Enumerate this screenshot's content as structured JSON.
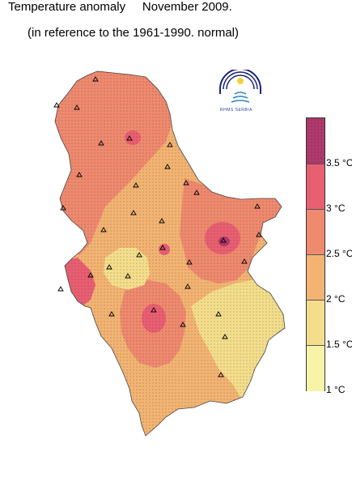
{
  "header": {
    "title": "Temperature anomaly     November 2009.",
    "subtitle": "(in reference to the 1961-1990. normal)"
  },
  "legend": {
    "unit": "°C",
    "bands": [
      {
        "range": "3.5+",
        "color": "#b03a6b"
      },
      {
        "range": "3-3.5",
        "color": "#e95f72"
      },
      {
        "range": "2.5-3",
        "color": "#ef8a6f"
      },
      {
        "range": "2-2.5",
        "color": "#f3b473"
      },
      {
        "range": "1.5-2",
        "color": "#f4de8c"
      },
      {
        "range": "1-1.5",
        "color": "#f7f3a8"
      }
    ],
    "labels": [
      {
        "value": "3.5",
        "unit": "°C"
      },
      {
        "value": "3",
        "unit": "°C"
      },
      {
        "value": "2.5",
        "unit": "°C"
      },
      {
        "value": "2",
        "unit": "°C"
      },
      {
        "value": "1.5",
        "unit": "°C"
      },
      {
        "value": "1",
        "unit": "°C"
      }
    ]
  },
  "logo": {
    "text": "RHMS SERBIA"
  },
  "map": {
    "zones": [
      {
        "name": "base-2-2.5",
        "value_range": "2-2.5",
        "color": "#f3b473"
      },
      {
        "name": "north-west-2.5-3",
        "value_range": "2.5-3",
        "color": "#ef8a6f"
      },
      {
        "name": "east-2.5-3",
        "value_range": "2.5-3",
        "color": "#ef8a6f"
      },
      {
        "name": "central-south-2.5-3",
        "value_range": "2.5-3",
        "color": "#ef8a6f"
      },
      {
        "name": "west-1.5-2",
        "value_range": "1.5-2",
        "color": "#f4de8c"
      },
      {
        "name": "south-east-1.5-2",
        "value_range": "1.5-2",
        "color": "#f4de8c"
      },
      {
        "name": "north-3-3.5",
        "value_range": "3-3.5",
        "color": "#e95f72"
      },
      {
        "name": "east-3-3.5",
        "value_range": "3-3.5",
        "color": "#e95f72"
      },
      {
        "name": "east-core-3.5+",
        "value_range": "3.5+",
        "color": "#b03a6b"
      },
      {
        "name": "south-west-3-3.5",
        "value_range": "3-3.5",
        "color": "#e95f72"
      },
      {
        "name": "center-3-3.5",
        "value_range": "3-3.5",
        "color": "#e95f72"
      },
      {
        "name": "far-west-3-3.5",
        "value_range": "3-3.5",
        "color": "#e95f72"
      }
    ],
    "station_count": 33
  }
}
